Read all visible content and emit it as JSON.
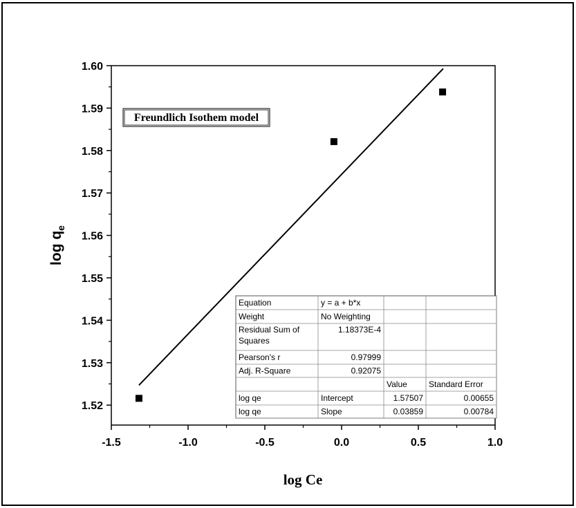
{
  "chart_data": {
    "type": "scatter",
    "title": "Freundlich Isothem model",
    "xlabel": "log Ce",
    "ylabel": {
      "text": "log q",
      "subscript": "e"
    },
    "x": [
      -1.32,
      -0.05,
      0.658
    ],
    "values": [
      1.5216,
      1.5821,
      1.5938
    ],
    "color": "#000000",
    "fit": {
      "x": [
        -1.32,
        0.662
      ],
      "values": [
        1.5247,
        1.5993
      ],
      "color": "#000000"
    },
    "xlim": [
      -1.5,
      1.0
    ],
    "ylim": [
      1.5153,
      1.6
    ],
    "xticks": [
      -1.5,
      {
        "value": -1.0,
        "label": "-1.0"
      },
      -0.5,
      {
        "value": 0,
        "label": "0.0"
      },
      0.5,
      {
        "value": 1.0,
        "label": "1.0"
      }
    ],
    "yticks": [
      1.52,
      1.53,
      1.54,
      1.55,
      1.56,
      1.57,
      1.58,
      1.59,
      {
        "value": 1.6,
        "label": "1.60"
      }
    ],
    "grid": false,
    "table": {
      "rows": [
        [
          "Equation",
          "y = a + b*x",
          null,
          null
        ],
        [
          "Weight",
          "No Weighting",
          null,
          null
        ],
        [
          "Residual Sum of Squares",
          "1.18373E-4",
          null,
          null
        ],
        [
          "Pearson's r",
          0.97999,
          null,
          null
        ],
        [
          "Adj. R-Square",
          0.92075,
          null,
          null
        ],
        [
          null,
          null,
          "Value",
          "Standard Error"
        ],
        [
          "log qe",
          "Intercept",
          1.57507,
          0.00655
        ],
        [
          "log qe",
          "Slope",
          0.03859,
          0.00784
        ]
      ]
    }
  }
}
